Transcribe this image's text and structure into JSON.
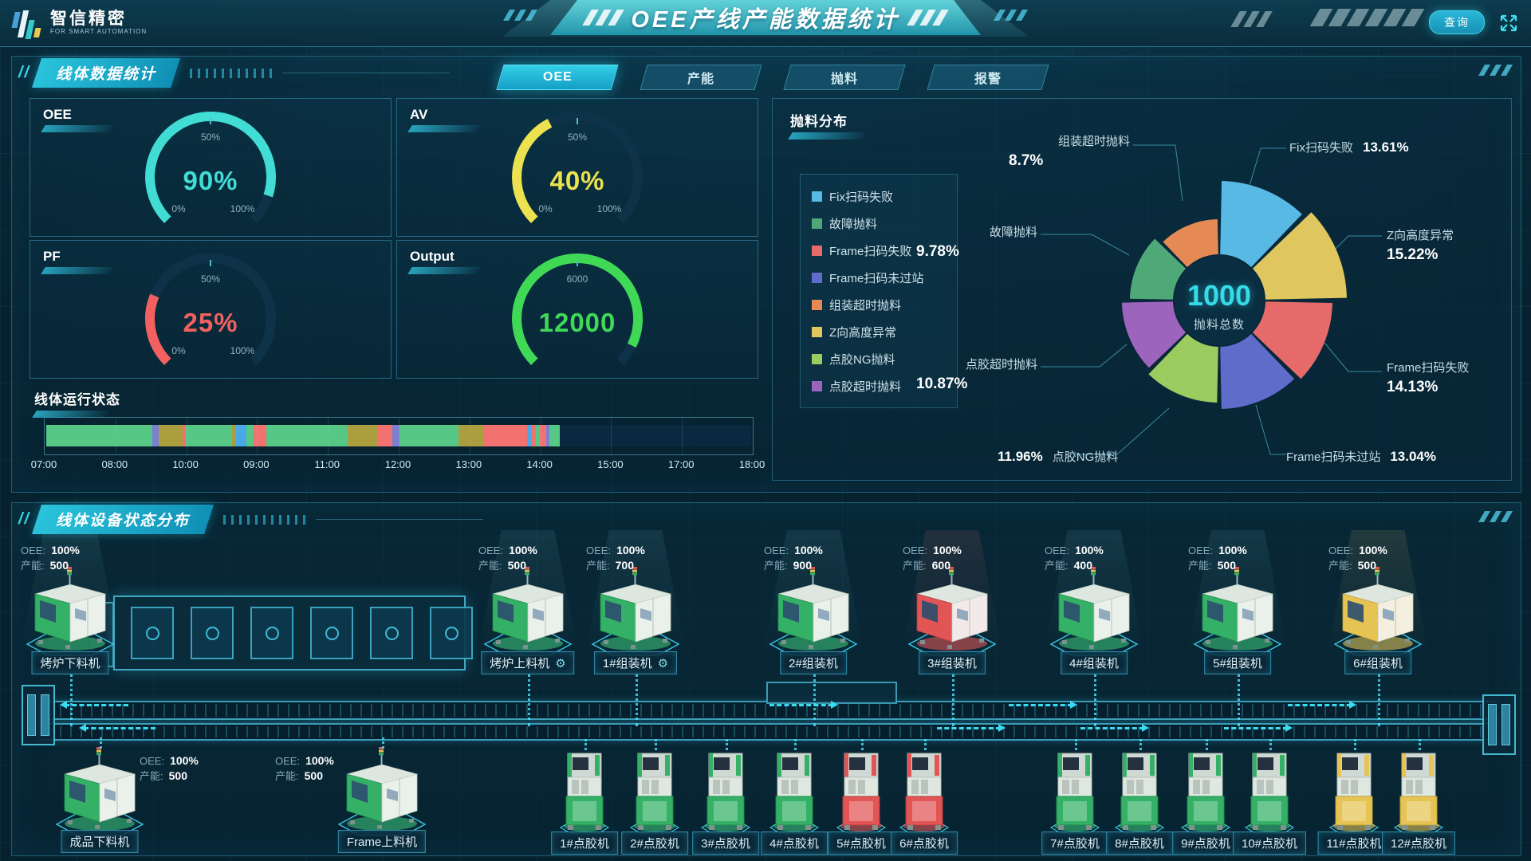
{
  "header": {
    "logo_title": "智信精密",
    "logo_subtitle": "FOR SMART AUTOMATION",
    "title": "OEE产线产能数据统计",
    "query_label": "查询"
  },
  "stats_panel": {
    "title": "线体数据统计",
    "tabs": [
      {
        "id": "oee",
        "label": "OEE",
        "active": true
      },
      {
        "id": "capacity",
        "label": "产能",
        "active": false
      },
      {
        "id": "scrap",
        "label": "抛料",
        "active": false
      },
      {
        "id": "alarm",
        "label": "报警",
        "active": false
      }
    ],
    "gauges": [
      {
        "id": "oee",
        "title": "OEE",
        "value": "90%",
        "fraction": 0.9,
        "color": "#41dcd3",
        "tick_start": "0%",
        "tick_mid": "50%",
        "tick_end": "100%"
      },
      {
        "id": "av",
        "title": "AV",
        "value": "40%",
        "fraction": 0.4,
        "color": "#ece24f",
        "tick_start": "0%",
        "tick_mid": "50%",
        "tick_end": "100%"
      },
      {
        "id": "pf",
        "title": "PF",
        "value": "25%",
        "fraction": 0.25,
        "color": "#f2615f",
        "tick_start": "0%",
        "tick_mid": "50%",
        "tick_end": "100%"
      },
      {
        "id": "output",
        "title": "Output",
        "value": "12000",
        "fraction": 0.93,
        "color": "#3fd956",
        "tick_start": "",
        "tick_mid": "6000",
        "tick_end": ""
      }
    ],
    "run_state": {
      "title": "线体运行状态",
      "time_labels": [
        "07:00",
        "08:00",
        "10:00",
        "09:00",
        "11:00",
        "12:00",
        "13:00",
        "14:00",
        "15:00",
        "17:00",
        "18:00"
      ],
      "status_colors": {
        "run": "#57c785",
        "idle": "#ab9e3e",
        "alarm": "#f2726f",
        "feed": "#48a8e8",
        "wait": "#7b80d2"
      },
      "segments": [
        {
          "status": "run",
          "width": 15.0
        },
        {
          "status": "wait",
          "width": 1.0
        },
        {
          "status": "idle",
          "width": 3.4
        },
        {
          "status": "alarm",
          "width": 0.4
        },
        {
          "status": "run",
          "width": 6.6
        },
        {
          "status": "idle",
          "width": 0.5
        },
        {
          "status": "feed",
          "width": 1.5
        },
        {
          "status": "run",
          "width": 1.0
        },
        {
          "status": "alarm",
          "width": 1.8
        },
        {
          "status": "run",
          "width": 11.6
        },
        {
          "status": "idle",
          "width": 4.3
        },
        {
          "status": "alarm",
          "width": 2.0
        },
        {
          "status": "wait",
          "width": 1.0
        },
        {
          "status": "run",
          "width": 8.4
        },
        {
          "status": "idle",
          "width": 3.6
        },
        {
          "status": "alarm",
          "width": 6.1
        },
        {
          "status": "feed",
          "width": 0.7
        },
        {
          "status": "alarm",
          "width": 0.6
        },
        {
          "status": "run",
          "width": 0.5
        },
        {
          "status": "alarm",
          "width": 0.9
        },
        {
          "status": "wait",
          "width": 0.5
        },
        {
          "status": "run",
          "width": 1.5
        }
      ]
    }
  },
  "scrap_panel": {
    "title": "抛料分布",
    "total_value": "1000",
    "total_label": "抛料总数",
    "slices": [
      {
        "id": "fix-scan-fail",
        "label": "Fix扫码失败",
        "value": 13.61,
        "pct": "13.61%",
        "color": "#57b9e4"
      },
      {
        "id": "fault-scrap",
        "label": "故障抛料",
        "value": 9.78,
        "pct": "9.78%",
        "color": "#4ea878"
      },
      {
        "id": "frame-scan-fail",
        "label": "Frame扫码失败",
        "value": 14.13,
        "pct": "14.13%",
        "color": "#e66a6a"
      },
      {
        "id": "frame-scan-miss",
        "label": "Frame扫码未过站",
        "value": 13.04,
        "pct": "13.04%",
        "color": "#5f6cc9"
      },
      {
        "id": "assembly-timeout",
        "label": "组装超时抛料",
        "value": 8.7,
        "pct": "8.7%",
        "color": "#e68a55"
      },
      {
        "id": "z-height-abnormal",
        "label": "Z向高度异常",
        "value": 15.22,
        "pct": "15.22%",
        "color": "#dfc65f"
      },
      {
        "id": "glue-ng",
        "label": "点胶NG抛料",
        "value": 11.96,
        "pct": "11.96%",
        "color": "#9ccb5f"
      },
      {
        "id": "glue-timeout",
        "label": "点胶超时抛料",
        "value": 10.87,
        "pct": "10.87%",
        "color": "#9d64bd"
      }
    ]
  },
  "devices_panel": {
    "title": "线体设备状态分布",
    "oee_label": "OEE:",
    "capacity_label": "产能:",
    "top_machines": [
      {
        "id": "oven-unloader",
        "name": "烤炉下料机",
        "oee": "100%",
        "capacity": "500",
        "status": "green",
        "gear": false
      },
      {
        "id": "oven-loader",
        "name": "烤炉上料机",
        "oee": "100%",
        "capacity": "500",
        "status": "green",
        "gear": true
      },
      {
        "id": "assembler-1",
        "name": "1#组装机",
        "oee": "100%",
        "capacity": "700",
        "status": "green",
        "gear": true
      },
      {
        "id": "assembler-2",
        "name": "2#组装机",
        "oee": "100%",
        "capacity": "900",
        "status": "green",
        "gear": false
      },
      {
        "id": "assembler-3",
        "name": "3#组装机",
        "oee": "100%",
        "capacity": "600",
        "status": "red",
        "gear": false
      },
      {
        "id": "assembler-4",
        "name": "4#组装机",
        "oee": "100%",
        "capacity": "400",
        "status": "green",
        "gear": false
      },
      {
        "id": "assembler-5",
        "name": "5#组装机",
        "oee": "100%",
        "capacity": "500",
        "status": "green",
        "gear": false
      },
      {
        "id": "assembler-6",
        "name": "6#组装机",
        "oee": "100%",
        "capacity": "500",
        "status": "yellow",
        "gear": false
      }
    ],
    "feature_machines": [
      {
        "id": "product-unloader",
        "name": "成品下料机",
        "oee": "100%",
        "capacity": "500",
        "status": "green",
        "stats_side": "right"
      },
      {
        "id": "frame-loader",
        "name": "Frame上料机",
        "oee": "100%",
        "capacity": "500",
        "status": "green",
        "stats_side": "left"
      }
    ],
    "dispensers": [
      {
        "id": "dispenser-1",
        "name": "1#点胶机",
        "status": "green"
      },
      {
        "id": "dispenser-2",
        "name": "2#点胶机",
        "status": "green"
      },
      {
        "id": "dispenser-3",
        "name": "3#点胶机",
        "status": "green"
      },
      {
        "id": "dispenser-4",
        "name": "4#点胶机",
        "status": "green"
      },
      {
        "id": "dispenser-5",
        "name": "5#点胶机",
        "status": "red"
      },
      {
        "id": "dispenser-6",
        "name": "6#点胶机",
        "status": "red"
      },
      {
        "id": "dispenser-7",
        "name": "7#点胶机",
        "status": "green"
      },
      {
        "id": "dispenser-8",
        "name": "8#点胶机",
        "status": "green"
      },
      {
        "id": "dispenser-9",
        "name": "9#点胶机",
        "status": "green"
      },
      {
        "id": "dispenser-10",
        "name": "10#点胶机",
        "status": "green"
      },
      {
        "id": "dispenser-11",
        "name": "11#点胶机",
        "status": "yellow"
      },
      {
        "id": "dispenser-12",
        "name": "12#点胶机",
        "status": "yellow"
      }
    ]
  }
}
